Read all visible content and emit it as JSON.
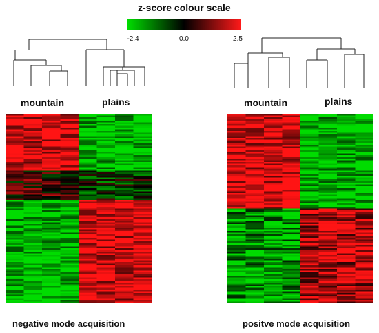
{
  "scale": {
    "title": "z-score colour scale",
    "min_label": "-2.4",
    "mid_label": "0.0",
    "max_label": "2.5",
    "colors": {
      "low": "#00e000",
      "mid": "#000000",
      "high": "#ff1a1a"
    }
  },
  "panels": [
    {
      "group_labels": [
        "mountain",
        "plains"
      ],
      "caption": "negative mode acquisition",
      "columns": 8,
      "rows": 110
    },
    {
      "group_labels": [
        "mountain",
        "plains"
      ],
      "caption": "positve mode acquisition",
      "columns": 8,
      "rows": 110
    }
  ]
}
